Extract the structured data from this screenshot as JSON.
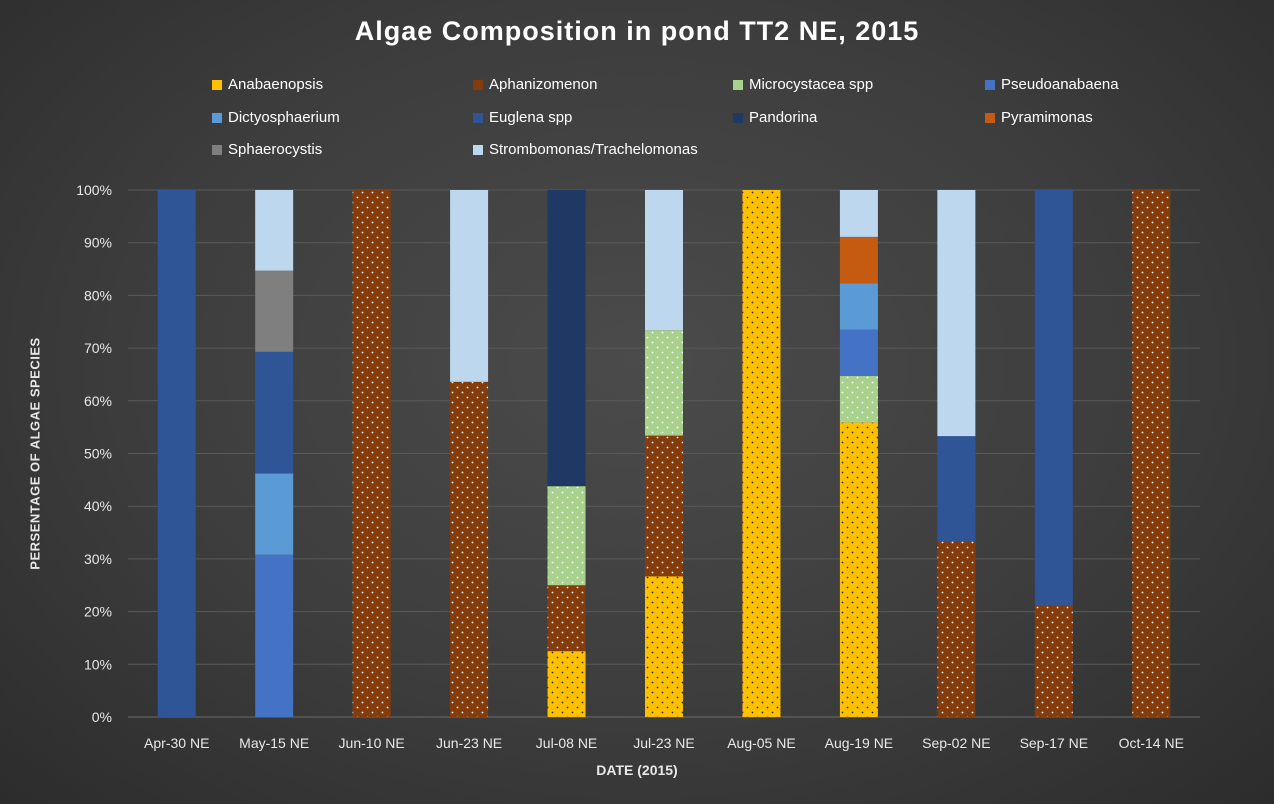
{
  "chart_data": {
    "type": "bar",
    "stacked": true,
    "percent": true,
    "title": "Algae Composition in pond TT2 NE, 2015",
    "xlabel": "DATE (2015)",
    "ylabel": "PERSENTAGE OF ALGAE SPECIES",
    "ylim": [
      0,
      100
    ],
    "y_ticks": [
      "0%",
      "10%",
      "20%",
      "30%",
      "40%",
      "50%",
      "60%",
      "70%",
      "80%",
      "90%",
      "100%"
    ],
    "grid": true,
    "legend_position": "top",
    "categories": [
      "Apr-30 NE",
      "May-15 NE",
      "Jun-10 NE",
      "Jun-23 NE",
      "Jul-08 NE",
      "Jul-23 NE",
      "Aug-05 NE",
      "Aug-19 NE",
      "Sep-02 NE",
      "Sep-17 NE",
      "Oct-14 NE"
    ],
    "series": [
      {
        "name": "Anabaenopsis",
        "color": "#ffc000",
        "pattern": "dots",
        "values": [
          0,
          0,
          0,
          0,
          12.5,
          26.7,
          100,
          55.9,
          0,
          0,
          0
        ]
      },
      {
        "name": "Aphanizomenon",
        "color": "#843c0c",
        "pattern": "dots",
        "values": [
          0,
          0,
          100,
          63.6,
          12.5,
          26.7,
          0,
          0,
          33.3,
          21.1,
          100
        ]
      },
      {
        "name": "Microcystacea spp",
        "color": "#a9d18e",
        "pattern": "dots",
        "values": [
          0,
          0,
          0,
          0,
          18.8,
          20.0,
          0,
          8.8,
          0,
          0,
          0
        ]
      },
      {
        "name": "Pseudoanabaena",
        "color": "#4472c4",
        "pattern": "none",
        "values": [
          0,
          30.8,
          0,
          0,
          0,
          0,
          0,
          8.8,
          0,
          0,
          0
        ]
      },
      {
        "name": "Dictyosphaerium",
        "color": "#5b9bd5",
        "pattern": "none",
        "values": [
          0,
          15.4,
          0,
          0,
          0,
          0,
          0,
          8.8,
          0,
          0,
          0
        ]
      },
      {
        "name": "Euglena spp",
        "color": "#2f5597",
        "pattern": "none",
        "values": [
          100,
          23.1,
          0,
          0,
          0,
          0,
          0,
          0,
          20.0,
          78.9,
          0
        ]
      },
      {
        "name": "Pandorina",
        "color": "#203864",
        "pattern": "none",
        "values": [
          0,
          0,
          0,
          0,
          56.2,
          0,
          0,
          0,
          0,
          0,
          0
        ]
      },
      {
        "name": "Pyramimonas",
        "color": "#c55a11",
        "pattern": "none",
        "values": [
          0,
          0,
          0,
          0,
          0,
          0,
          0,
          8.8,
          0,
          0,
          0
        ]
      },
      {
        "name": "Sphaerocystis",
        "color": "#7f7f7f",
        "pattern": "none",
        "values": [
          0,
          15.4,
          0,
          0,
          0,
          0,
          0,
          0,
          0,
          0,
          0
        ]
      },
      {
        "name": "Strombomonas/Trachelomonas",
        "color": "#bdd7ee",
        "pattern": "none",
        "values": [
          0,
          15.3,
          0,
          36.4,
          0,
          26.6,
          0,
          8.9,
          46.7,
          0,
          0
        ]
      }
    ]
  }
}
